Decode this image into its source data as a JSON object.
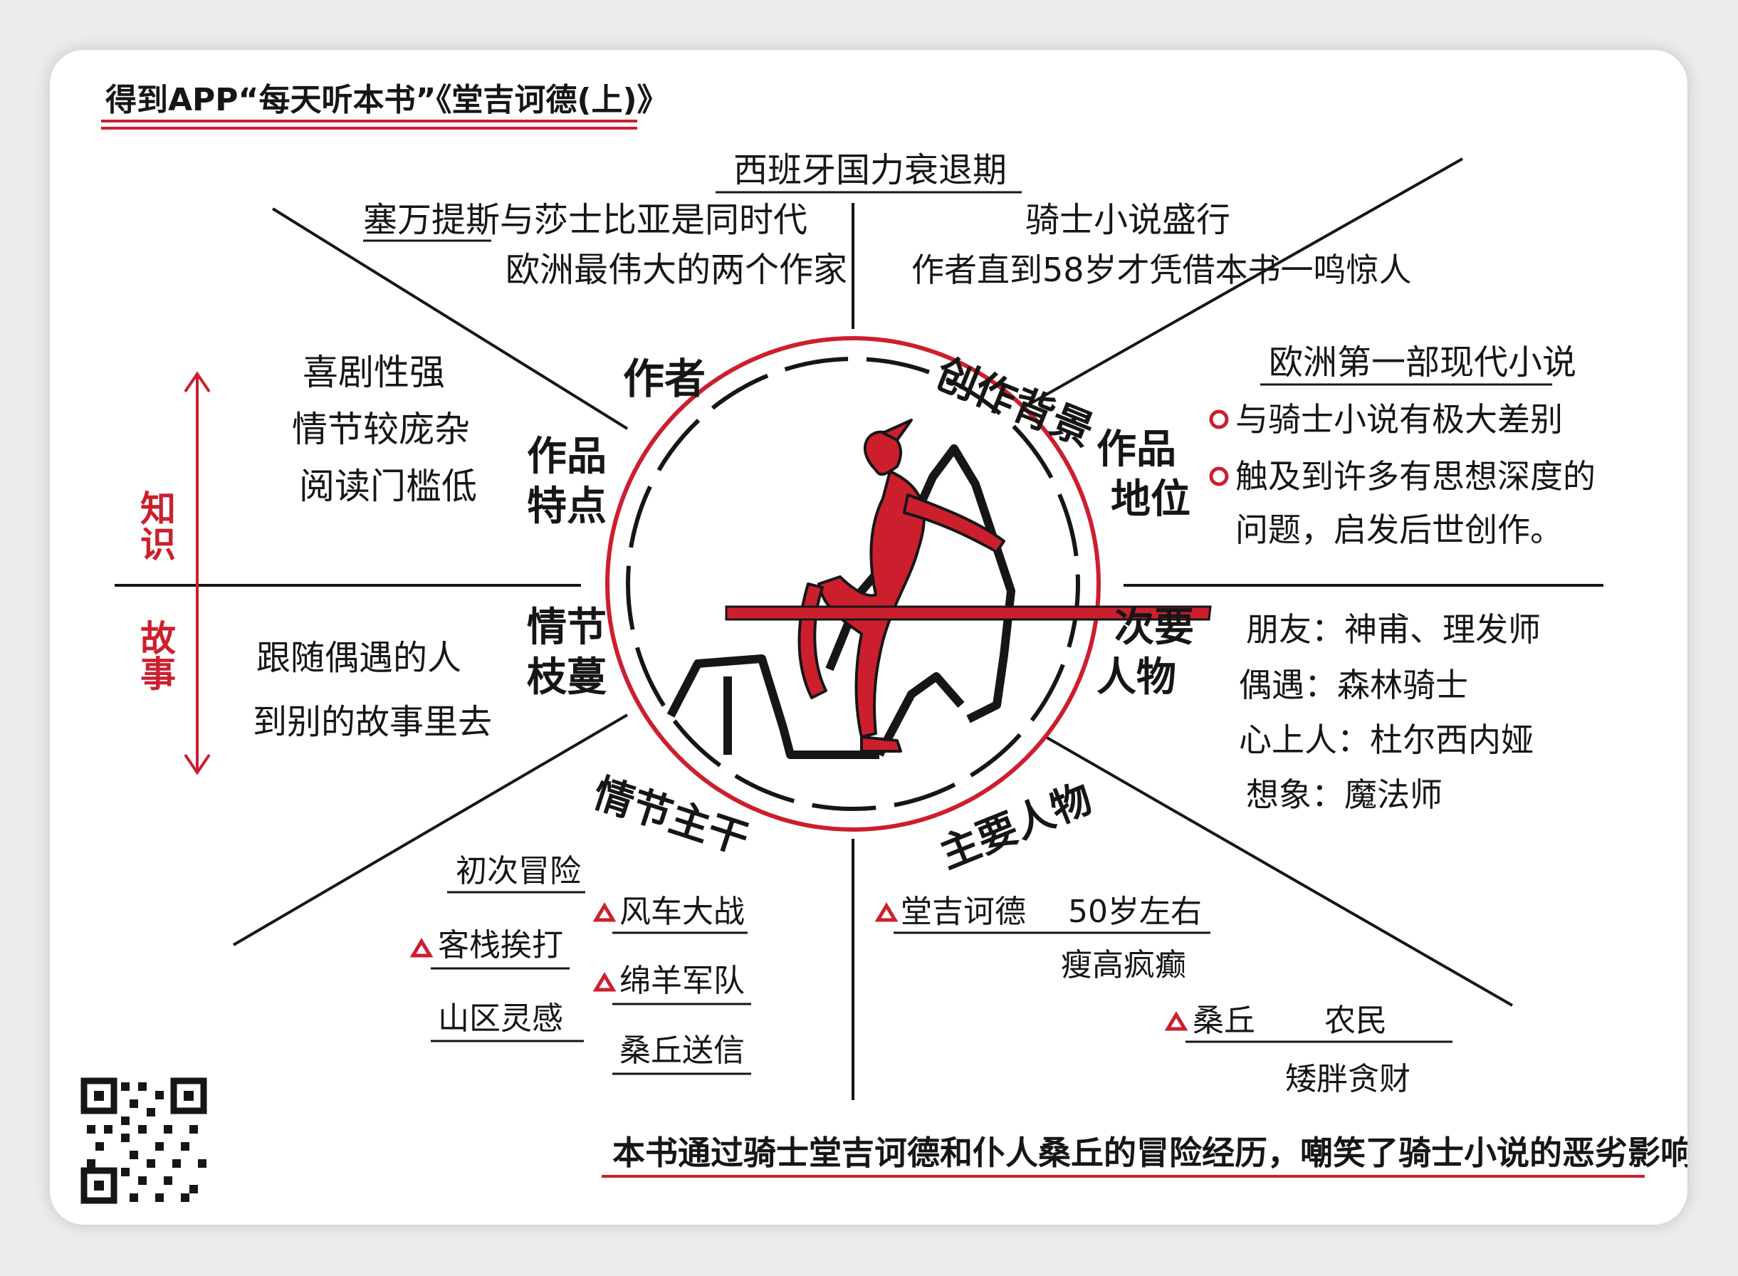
{
  "title": "得到APP“每天听本书”《堂吉诃德(上)》",
  "axis": {
    "knowledge": "知识",
    "story": "故事"
  },
  "sections": {
    "author": {
      "label": "作者",
      "lines": [
        "塞万提斯与莎士比亚是同时代",
        "欧洲最伟大的两个作家"
      ]
    },
    "background": {
      "label": "创作背景",
      "heading": "西班牙国力衰退期",
      "lines": [
        "骑士小说盛行",
        "作者直到58岁才凭借本书一鸣惊人"
      ]
    },
    "features": {
      "label_line1": "作品",
      "label_line2": "特点",
      "lines": [
        "喜剧性强",
        "情节较庞杂",
        "阅读门槛低"
      ]
    },
    "status": {
      "label_line1": "作品",
      "label_line2": "地位",
      "heading": "欧洲第一部现代小说",
      "bullets": [
        "与骑士小说有极大差别",
        "触及到许多有思想深度的"
      ],
      "continuation": "问题，启发后世创作。"
    },
    "branches": {
      "label_line1": "情节",
      "label_line2": "枝蔓",
      "lines": [
        "跟随偶遇的人",
        "到别的故事里去"
      ]
    },
    "secondary": {
      "label_line1": "次要",
      "label_line2": "人物",
      "lines": [
        "朋友：神甫、理发师",
        "偶遇：森林骑士",
        "心上人：杜尔西内娅",
        "想象：魔法师"
      ]
    },
    "plot": {
      "label": "情节主干",
      "first": "初次冒险",
      "first_items": [
        "客栈挨打",
        "山区灵感"
      ],
      "second_items": [
        "风车大战",
        "绵羊军队",
        "桑丘送信"
      ]
    },
    "main_chars": {
      "label": "主要人物",
      "don": "堂吉诃德",
      "don_age": "50岁左右",
      "don_desc": "瘦高疯癫",
      "sancho": "桑丘",
      "sancho_role": "农民",
      "sancho_desc": "矮胖贪财"
    }
  },
  "summary": "本书通过骑士堂吉诃德和仆人桑丘的冒险经历，嘲笑了骑士小说的恶劣影响。",
  "colors": {
    "red": "#cc1f2e",
    "ink": "#161616"
  },
  "icons": {
    "center": "knight-with-lance-icon",
    "corner": "qr-code-icon"
  }
}
